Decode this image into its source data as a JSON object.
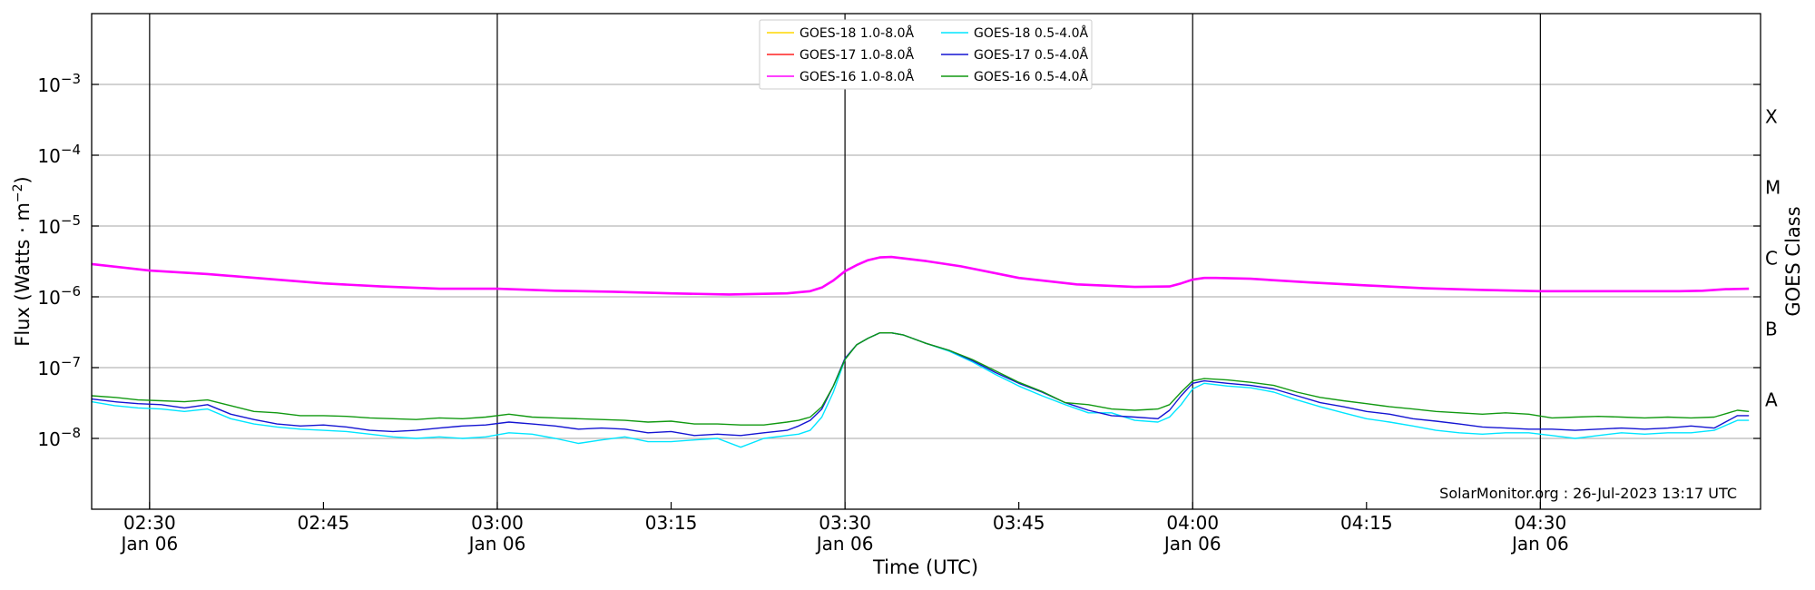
{
  "chart_data": {
    "type": "line",
    "xlabel": "Time (UTC)",
    "ylabel_main": "Flux (Watts · m",
    "ylabel_sup": "−2",
    "ylabel_tail": ")",
    "right_label": "GOES Class",
    "credit": "SolarMonitor.org : 26-Jul-2023 13:17 UTC",
    "y_scale": "log",
    "ylim": [
      1e-09,
      0.01
    ],
    "xlim_min": [
      145,
      289
    ],
    "grid": "horizontal at decades; vertical at 30-minute marks",
    "legend_position": "top-center",
    "y_ticks": [
      {
        "value": -3,
        "base": "10",
        "exp": "−3"
      },
      {
        "value": -4,
        "base": "10",
        "exp": "−4"
      },
      {
        "value": -5,
        "base": "10",
        "exp": "−5"
      },
      {
        "value": -6,
        "base": "10",
        "exp": "−6"
      },
      {
        "value": -7,
        "base": "10",
        "exp": "−7"
      },
      {
        "value": -8,
        "base": "10",
        "exp": "−8"
      }
    ],
    "goes_classes": [
      {
        "label": "X",
        "value": 0.00035
      },
      {
        "label": "M",
        "value": 3.5e-05
      },
      {
        "label": "C",
        "value": 3.5e-06
      },
      {
        "label": "B",
        "value": 3.5e-07
      },
      {
        "label": "A",
        "value": 3.5e-08
      }
    ],
    "x_ticks": [
      {
        "t": 150,
        "time": "02:30",
        "date": "Jan 06",
        "major": true
      },
      {
        "t": 165,
        "time": "02:45",
        "date": "",
        "major": false
      },
      {
        "t": 180,
        "time": "03:00",
        "date": "Jan 06",
        "major": true
      },
      {
        "t": 195,
        "time": "03:15",
        "date": "",
        "major": false
      },
      {
        "t": 210,
        "time": "03:30",
        "date": "Jan 06",
        "major": true
      },
      {
        "t": 225,
        "time": "03:45",
        "date": "",
        "major": false
      },
      {
        "t": 240,
        "time": "04:00",
        "date": "Jan 06",
        "major": true
      },
      {
        "t": 255,
        "time": "04:15",
        "date": "",
        "major": false
      },
      {
        "t": 270,
        "time": "04:30",
        "date": "Jan 06",
        "major": true
      }
    ],
    "series": [
      {
        "name": "GOES-18 1.0-8.0Å",
        "color": "#ffd700",
        "x": [],
        "values": []
      },
      {
        "name": "GOES-17 1.0-8.0Å",
        "color": "#ff2020",
        "x": [],
        "values": []
      },
      {
        "name": "GOES-16 1.0-8.0Å",
        "color": "#ff00ff",
        "x": [
          145,
          150,
          155,
          160,
          165,
          170,
          175,
          180,
          185,
          190,
          195,
          200,
          205,
          207,
          208,
          209,
          210,
          211,
          212,
          213,
          214,
          215,
          217,
          220,
          225,
          230,
          235,
          238,
          239,
          240,
          241,
          242,
          245,
          250,
          255,
          260,
          265,
          270,
          275,
          280,
          282,
          284,
          286,
          288
        ],
        "values": [
          2.9e-06,
          2.35e-06,
          2.1e-06,
          1.8e-06,
          1.55e-06,
          1.4e-06,
          1.3e-06,
          1.3e-06,
          1.22e-06,
          1.18e-06,
          1.12e-06,
          1.08e-06,
          1.12e-06,
          1.2e-06,
          1.35e-06,
          1.7e-06,
          2.3e-06,
          2.8e-06,
          3.3e-06,
          3.6e-06,
          3.65e-06,
          3.5e-06,
          3.2e-06,
          2.7e-06,
          1.85e-06,
          1.5e-06,
          1.38e-06,
          1.4e-06,
          1.55e-06,
          1.75e-06,
          1.85e-06,
          1.85e-06,
          1.8e-06,
          1.6e-06,
          1.45e-06,
          1.32e-06,
          1.25e-06,
          1.2e-06,
          1.2e-06,
          1.2e-06,
          1.2e-06,
          1.22e-06,
          1.28e-06,
          1.3e-06
        ]
      },
      {
        "name": "GOES-18 0.5-4.0Å",
        "color": "#00e5ff",
        "x": [
          145,
          147,
          149,
          151,
          153,
          155,
          157,
          159,
          161,
          163,
          165,
          167,
          169,
          171,
          173,
          175,
          177,
          179,
          181,
          183,
          185,
          187,
          189,
          191,
          193,
          195,
          197,
          199,
          201,
          203,
          205,
          206,
          207,
          208,
          209,
          210,
          211,
          212,
          213,
          214,
          215,
          217,
          219,
          221,
          223,
          225,
          227,
          229,
          231,
          233,
          235,
          237,
          238,
          239,
          240,
          241,
          243,
          245,
          247,
          249,
          251,
          253,
          255,
          257,
          259,
          261,
          263,
          265,
          267,
          269,
          271,
          273,
          275,
          277,
          279,
          281,
          283,
          285,
          287,
          288
        ],
        "values": [
          3.3e-08,
          2.9e-08,
          2.7e-08,
          2.6e-08,
          2.4e-08,
          2.6e-08,
          1.9e-08,
          1.6e-08,
          1.45e-08,
          1.35e-08,
          1.3e-08,
          1.25e-08,
          1.15e-08,
          1.05e-08,
          1e-08,
          1.05e-08,
          1e-08,
          1.05e-08,
          1.2e-08,
          1.15e-08,
          1e-08,
          8.5e-09,
          9.5e-09,
          1.05e-08,
          9e-09,
          9e-09,
          9.5e-09,
          1e-08,
          7.5e-09,
          1e-08,
          1.1e-08,
          1.15e-08,
          1.3e-08,
          2e-08,
          4.5e-08,
          1.3e-07,
          2.1e-07,
          2.6e-07,
          3.1e-07,
          3.1e-07,
          2.9e-07,
          2.2e-07,
          1.7e-07,
          1.2e-07,
          8e-08,
          5.5e-08,
          4e-08,
          3e-08,
          2.3e-08,
          2.3e-08,
          1.8e-08,
          1.7e-08,
          2e-08,
          3e-08,
          5e-08,
          6e-08,
          5.5e-08,
          5.2e-08,
          4.5e-08,
          3.5e-08,
          2.8e-08,
          2.3e-08,
          1.9e-08,
          1.7e-08,
          1.5e-08,
          1.3e-08,
          1.2e-08,
          1.15e-08,
          1.2e-08,
          1.2e-08,
          1.1e-08,
          1e-08,
          1.1e-08,
          1.2e-08,
          1.15e-08,
          1.2e-08,
          1.2e-08,
          1.3e-08,
          1.8e-08,
          1.8e-08
        ]
      },
      {
        "name": "GOES-17 0.5-4.0Å",
        "color": "#1414d2",
        "x": [
          145,
          147,
          149,
          151,
          153,
          155,
          157,
          159,
          161,
          163,
          165,
          167,
          169,
          171,
          173,
          175,
          177,
          179,
          181,
          183,
          185,
          187,
          189,
          191,
          193,
          195,
          197,
          199,
          201,
          203,
          205,
          206,
          207,
          208,
          209,
          210,
          211,
          212,
          213,
          214,
          215,
          217,
          219,
          221,
          223,
          225,
          227,
          229,
          231,
          233,
          235,
          237,
          238,
          239,
          240,
          241,
          243,
          245,
          247,
          249,
          251,
          253,
          255,
          257,
          259,
          261,
          263,
          265,
          267,
          269,
          271,
          273,
          275,
          277,
          279,
          281,
          283,
          285,
          287,
          288
        ],
        "values": [
          3.6e-08,
          3.3e-08,
          3.1e-08,
          3e-08,
          2.7e-08,
          3e-08,
          2.2e-08,
          1.85e-08,
          1.6e-08,
          1.5e-08,
          1.55e-08,
          1.45e-08,
          1.3e-08,
          1.25e-08,
          1.3e-08,
          1.4e-08,
          1.5e-08,
          1.55e-08,
          1.7e-08,
          1.6e-08,
          1.5e-08,
          1.35e-08,
          1.4e-08,
          1.35e-08,
          1.2e-08,
          1.25e-08,
          1.1e-08,
          1.15e-08,
          1.1e-08,
          1.2e-08,
          1.3e-08,
          1.5e-08,
          1.8e-08,
          2.6e-08,
          5.5e-08,
          1.35e-07,
          2.1e-07,
          2.6e-07,
          3.1e-07,
          3.1e-07,
          2.9e-07,
          2.2e-07,
          1.75e-07,
          1.25e-07,
          8.5e-08,
          6e-08,
          4.5e-08,
          3.2e-08,
          2.5e-08,
          2.1e-08,
          2e-08,
          1.9e-08,
          2.5e-08,
          4e-08,
          6e-08,
          6.5e-08,
          6e-08,
          5.6e-08,
          5e-08,
          4e-08,
          3.2e-08,
          2.8e-08,
          2.4e-08,
          2.2e-08,
          1.9e-08,
          1.75e-08,
          1.6e-08,
          1.45e-08,
          1.4e-08,
          1.35e-08,
          1.35e-08,
          1.3e-08,
          1.35e-08,
          1.4e-08,
          1.35e-08,
          1.4e-08,
          1.5e-08,
          1.4e-08,
          2.1e-08,
          2.1e-08
        ]
      },
      {
        "name": "GOES-16 0.5-4.0Å",
        "color": "#119911",
        "x": [
          145,
          147,
          149,
          151,
          153,
          155,
          157,
          159,
          161,
          163,
          165,
          167,
          169,
          171,
          173,
          175,
          177,
          179,
          181,
          183,
          185,
          187,
          189,
          191,
          193,
          195,
          197,
          199,
          201,
          203,
          205,
          206,
          207,
          208,
          209,
          210,
          211,
          212,
          213,
          214,
          215,
          217,
          219,
          221,
          223,
          225,
          227,
          229,
          231,
          233,
          235,
          237,
          238,
          239,
          240,
          241,
          243,
          245,
          247,
          249,
          251,
          253,
          255,
          257,
          259,
          261,
          263,
          265,
          267,
          269,
          271,
          273,
          275,
          277,
          279,
          281,
          283,
          285,
          287,
          288
        ],
        "values": [
          4e-08,
          3.8e-08,
          3.5e-08,
          3.4e-08,
          3.3e-08,
          3.5e-08,
          2.9e-08,
          2.4e-08,
          2.3e-08,
          2.1e-08,
          2.1e-08,
          2.05e-08,
          1.95e-08,
          1.9e-08,
          1.85e-08,
          1.95e-08,
          1.9e-08,
          2e-08,
          2.2e-08,
          2e-08,
          1.95e-08,
          1.9e-08,
          1.85e-08,
          1.8e-08,
          1.7e-08,
          1.75e-08,
          1.6e-08,
          1.6e-08,
          1.55e-08,
          1.55e-08,
          1.7e-08,
          1.8e-08,
          2e-08,
          2.8e-08,
          5.5e-08,
          1.3e-07,
          2.1e-07,
          2.6e-07,
          3.1e-07,
          3.1e-07,
          2.9e-07,
          2.2e-07,
          1.75e-07,
          1.3e-07,
          9e-08,
          6.2e-08,
          4.6e-08,
          3.2e-08,
          3e-08,
          2.6e-08,
          2.5e-08,
          2.6e-08,
          3e-08,
          4.5e-08,
          6.5e-08,
          7e-08,
          6.7e-08,
          6.2e-08,
          5.6e-08,
          4.5e-08,
          3.8e-08,
          3.4e-08,
          3.1e-08,
          2.8e-08,
          2.6e-08,
          2.4e-08,
          2.3e-08,
          2.2e-08,
          2.3e-08,
          2.2e-08,
          1.95e-08,
          2e-08,
          2.05e-08,
          2e-08,
          1.95e-08,
          2e-08,
          1.95e-08,
          2e-08,
          2.5e-08,
          2.4e-08
        ]
      }
    ]
  }
}
